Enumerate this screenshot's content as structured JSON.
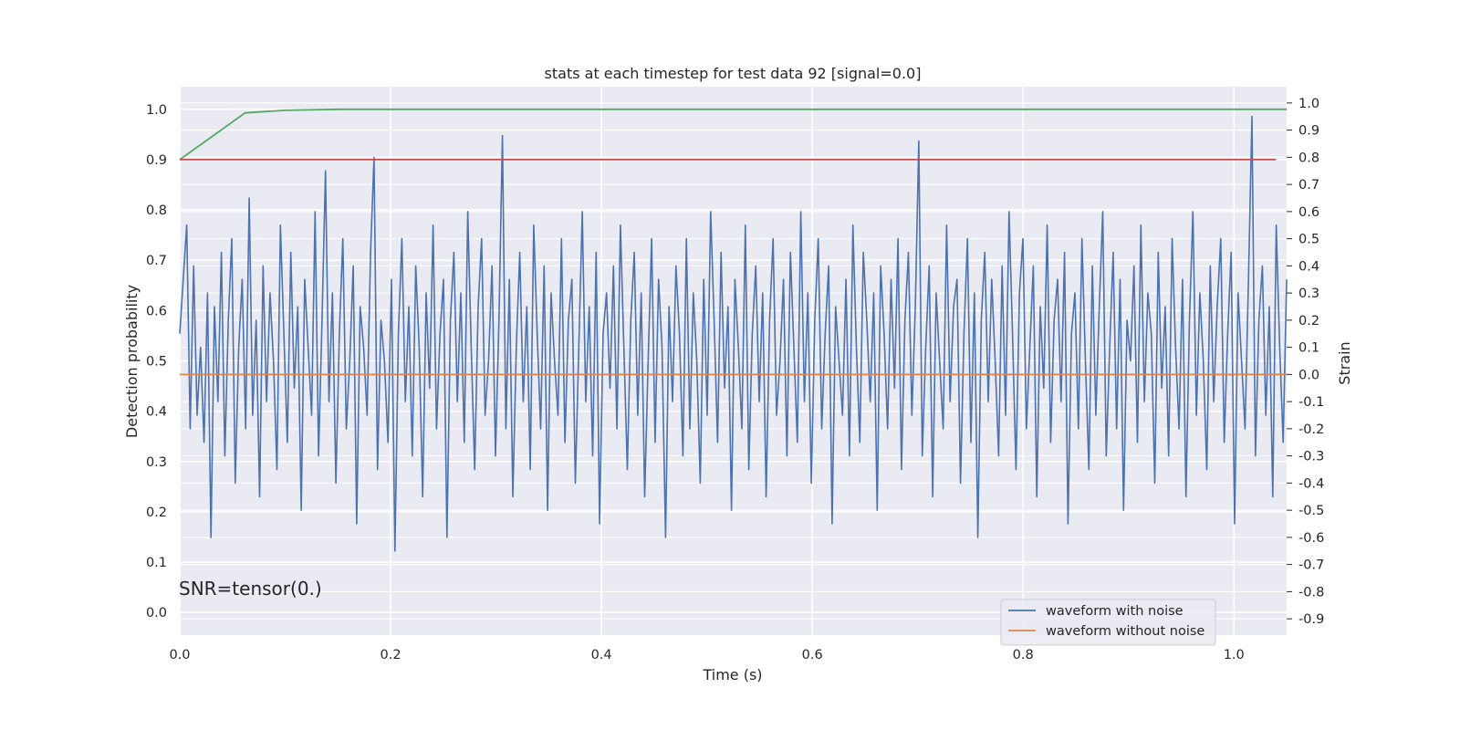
{
  "chart_data": {
    "type": "line",
    "title": "stats at each timestep for test data 92 [signal=0.0]",
    "xlabel": "Time (s)",
    "ylabel": "Detection probability",
    "ylabel_right": "Strain",
    "annotation": "SNR=tensor(0.)",
    "xlim": [
      0.0,
      1.05
    ],
    "ylim": [
      -0.045,
      1.045
    ],
    "ylim_right": [
      -0.96,
      1.06
    ],
    "x_ticks": [
      "0.0",
      "0.2",
      "0.4",
      "0.6",
      "0.8",
      "1.0"
    ],
    "y_ticks": [
      "0.0",
      "0.1",
      "0.2",
      "0.3",
      "0.4",
      "0.5",
      "0.6",
      "0.7",
      "0.8",
      "0.9",
      "1.0"
    ],
    "y_ticks_right": [
      "-0.9",
      "-0.8",
      "-0.7",
      "-0.6",
      "-0.5",
      "-0.4",
      "-0.3",
      "-0.2",
      "-0.1",
      "0.0",
      "0.1",
      "0.2",
      "0.3",
      "0.4",
      "0.5",
      "0.6",
      "0.7",
      "0.8",
      "0.9",
      "1.0"
    ],
    "grid": true,
    "legend_position": "lower-right",
    "series": [
      {
        "name": "waveform with noise",
        "axis": "right",
        "color": "#4c72b0",
        "x_range": [
          0.0,
          1.05
        ],
        "values": [
          0.15,
          0.35,
          0.55,
          -0.2,
          0.4,
          -0.15,
          0.1,
          -0.25,
          0.3,
          -0.6,
          0.25,
          -0.1,
          0.45,
          -0.3,
          0.2,
          0.5,
          -0.4,
          0.1,
          0.35,
          -0.2,
          0.65,
          -0.15,
          0.2,
          -0.45,
          0.4,
          -0.1,
          0.3,
          0.05,
          -0.35,
          0.55,
          0.15,
          -0.25,
          0.45,
          -0.05,
          0.25,
          -0.5,
          0.35,
          0.1,
          -0.15,
          0.6,
          -0.3,
          0.2,
          0.75,
          -0.1,
          0.3,
          -0.4,
          0.15,
          0.5,
          -0.2,
          0.05,
          0.4,
          -0.55,
          0.25,
          0.1,
          -0.15,
          0.45,
          0.8,
          -0.35,
          0.2,
          0.05,
          -0.25,
          0.35,
          -0.65,
          0.15,
          0.5,
          -0.1,
          0.25,
          -0.3,
          0.4,
          0.1,
          -0.45,
          0.3,
          -0.05,
          0.55,
          -0.2,
          0.15,
          0.35,
          -0.6,
          0.2,
          0.45,
          -0.1,
          0.3,
          -0.25,
          0.6,
          0.1,
          -0.35,
          0.25,
          0.5,
          -0.15,
          0.05,
          0.4,
          -0.3,
          0.2,
          0.88,
          -0.2,
          0.35,
          -0.45,
          0.1,
          0.45,
          -0.1,
          0.25,
          -0.35,
          0.55,
          0.15,
          -0.2,
          0.4,
          -0.5,
          0.3,
          0.05,
          -0.15,
          0.5,
          -0.25,
          0.2,
          0.35,
          -0.4,
          0.1,
          0.6,
          -0.1,
          0.25,
          -0.3,
          0.45,
          -0.55,
          0.15,
          0.3,
          -0.05,
          0.4,
          -0.2,
          0.55,
          0.1,
          -0.35,
          0.2,
          0.45,
          -0.15,
          0.3,
          -0.45,
          0.05,
          0.5,
          -0.25,
          0.35,
          0.1,
          -0.6,
          0.25,
          -0.1,
          0.4,
          0.15,
          -0.3,
          0.5,
          -0.2,
          0.3,
          0.05,
          -0.4,
          0.35,
          -0.15,
          0.6,
          0.2,
          -0.25,
          0.45,
          -0.05,
          0.25,
          -0.5,
          0.35,
          0.1,
          -0.2,
          0.55,
          -0.35,
          0.15,
          0.4,
          -0.1,
          0.3,
          -0.45,
          0.2,
          0.5,
          -0.15,
          0.05,
          0.35,
          -0.3,
          0.45,
          0.1,
          -0.25,
          0.6,
          -0.1,
          0.3,
          -0.4,
          0.2,
          0.5,
          -0.2,
          0.15,
          0.4,
          -0.55,
          0.25,
          0.05,
          -0.15,
          0.35,
          -0.3,
          0.55,
          0.1,
          -0.25,
          0.45,
          0.2,
          -0.1,
          0.3,
          -0.5,
          0.4,
          0.15,
          -0.2,
          0.35,
          -0.05,
          0.5,
          -0.35,
          0.2,
          0.45,
          -0.15,
          0.25,
          0.86,
          -0.3,
          0.1,
          0.4,
          -0.45,
          0.3,
          0.05,
          -0.2,
          0.55,
          -0.1,
          0.25,
          0.35,
          -0.4,
          0.15,
          0.5,
          -0.25,
          0.3,
          -0.6,
          0.2,
          0.45,
          -0.1,
          0.35,
          0.05,
          -0.3,
          0.4,
          -0.15,
          0.6,
          0.15,
          -0.35,
          0.3,
          0.5,
          -0.2,
          0.1,
          0.4,
          -0.45,
          0.25,
          -0.05,
          0.55,
          -0.25,
          0.2,
          0.35,
          -0.1,
          0.45,
          -0.55,
          0.15,
          0.3,
          -0.2,
          0.5,
          0.05,
          -0.35,
          0.4,
          -0.15,
          0.25,
          0.6,
          -0.3,
          0.1,
          0.45,
          -0.2,
          0.35,
          -0.5,
          0.2,
          0.05,
          0.4,
          -0.25,
          0.55,
          -0.1,
          0.3,
          0.15,
          -0.4,
          0.45,
          -0.05,
          0.25,
          -0.3,
          0.5,
          0.1,
          -0.2,
          0.35,
          -0.45,
          0.2,
          0.6,
          -0.15,
          0.3,
          0.05,
          -0.35,
          0.4,
          -0.1,
          0.25,
          0.5,
          -0.25,
          0.15,
          0.45,
          -0.55,
          0.3,
          0.05,
          -0.2,
          0.35,
          0.95,
          -0.3,
          0.2,
          0.4,
          -0.15,
          0.25,
          -0.45,
          0.55,
          0.1,
          -0.25,
          0.35
        ]
      },
      {
        "name": "waveform without noise",
        "axis": "right",
        "color": "#dd8452",
        "x": [
          0.0,
          1.05
        ],
        "values": [
          0.0,
          0.0
        ]
      },
      {
        "name": "",
        "axis": "left",
        "color": "#55a868",
        "x": [
          0.0,
          0.03,
          0.062,
          0.1,
          0.15,
          1.05
        ],
        "values": [
          0.9,
          0.945,
          0.993,
          0.998,
          1.0,
          1.0
        ]
      },
      {
        "name": "",
        "axis": "left",
        "color": "#c44e52",
        "x": [
          0.0,
          1.04
        ],
        "values": [
          0.9,
          0.9
        ]
      }
    ]
  }
}
